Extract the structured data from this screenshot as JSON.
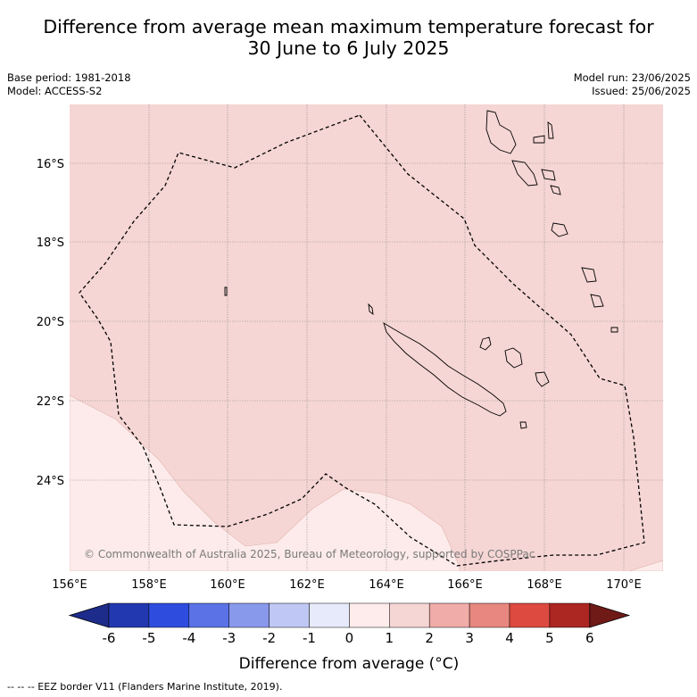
{
  "title": {
    "line1": "Difference from average mean maximum temperature forecast for",
    "line2": "30 June to 6 July 2025"
  },
  "meta": {
    "base_period": "Base period: 1981-2018",
    "model": "Model: ACCESS-S2",
    "model_run": "Model run: 23/06/2025",
    "issued": "Issued: 25/06/2025"
  },
  "map": {
    "lat_labels": [
      "16°S",
      "18°S",
      "20°S",
      "22°S",
      "24°S"
    ],
    "lon_labels": [
      "156°E",
      "158°E",
      "160°E",
      "162°E",
      "164°E",
      "166°E",
      "168°E",
      "170°E"
    ],
    "copyright": "© Commonwealth of Australia 2025, Bureau of Meteorology, supported by COSPPac",
    "colors": {
      "main_anomaly": "#f5d6d4",
      "low_anomaly": "#fcebea",
      "land_outline": "#000000",
      "graticule": "#808080"
    }
  },
  "colorbar": {
    "labels": [
      "-6",
      "-5",
      "-4",
      "-3",
      "-2",
      "-1",
      "0",
      "1",
      "2",
      "3",
      "4",
      "5",
      "6"
    ],
    "colors": [
      "#1d2c8a",
      "#2238b0",
      "#2e4ddf",
      "#5a72e6",
      "#8899ec",
      "#bfc7f4",
      "#e6eafb",
      "#fdeceb",
      "#f5d6d4",
      "#f0aca8",
      "#e8877f",
      "#dd4a3f",
      "#ac2622",
      "#6f1a17"
    ],
    "title": "Difference from average (°C)"
  },
  "footer": "--  --  -- EEZ border V11 (Flanders Marine Institute, 2019)."
}
